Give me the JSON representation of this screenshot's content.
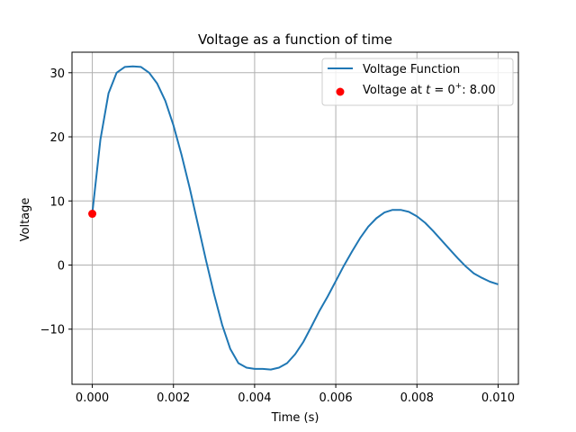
{
  "chart_data": {
    "type": "line",
    "title": "Voltage as a function of time",
    "xlabel": "Time (s)",
    "ylabel": "Voltage",
    "xlim": [
      -0.0005,
      0.0105
    ],
    "ylim": [
      -18.6,
      33.2
    ],
    "xticks": [
      0.0,
      0.002,
      0.004,
      0.006,
      0.008,
      0.01
    ],
    "xtick_labels": [
      "0.000",
      "0.002",
      "0.004",
      "0.006",
      "0.008",
      "0.010"
    ],
    "yticks": [
      -10,
      0,
      10,
      20,
      30
    ],
    "ytick_labels": [
      "−10",
      "0",
      "10",
      "20",
      "30"
    ],
    "grid": true,
    "legend_position": "top-right",
    "series": [
      {
        "name": "Voltage Function",
        "kind": "line",
        "color": "#1f77b4",
        "x": [
          0.0,
          0.0002,
          0.0004,
          0.0006,
          0.0008,
          0.001,
          0.0012,
          0.0014,
          0.0016,
          0.0018,
          0.002,
          0.0022,
          0.0024,
          0.0026,
          0.0028,
          0.003,
          0.0032,
          0.0034,
          0.0036,
          0.0038,
          0.004,
          0.0042,
          0.0044,
          0.0046,
          0.0048,
          0.005,
          0.0052,
          0.0054,
          0.0056,
          0.0058,
          0.006,
          0.0062,
          0.0064,
          0.0066,
          0.0068,
          0.007,
          0.0072,
          0.0074,
          0.0076,
          0.0078,
          0.008,
          0.0082,
          0.0084,
          0.0086,
          0.0088,
          0.009,
          0.0092,
          0.0094,
          0.0096,
          0.0098,
          0.01
        ],
        "y": [
          8.0,
          19.6,
          26.8,
          30.0,
          30.9,
          31.0,
          30.9,
          30.0,
          28.3,
          25.6,
          21.8,
          17.2,
          12.0,
          6.4,
          0.8,
          -4.5,
          -9.3,
          -13.1,
          -15.3,
          -16.0,
          -16.2,
          -16.2,
          -16.3,
          -16.0,
          -15.3,
          -13.9,
          -12.0,
          -9.6,
          -7.1,
          -4.9,
          -2.5,
          -0.1,
          2.1,
          4.2,
          6.0,
          7.3,
          8.2,
          8.6,
          8.6,
          8.3,
          7.6,
          6.6,
          5.3,
          3.9,
          2.5,
          1.1,
          -0.2,
          -1.3,
          -2.0,
          -2.6,
          -3.0
        ]
      },
      {
        "name": "Voltage at $t = 0^+$: 8.00",
        "kind": "point",
        "color": "#ff0000",
        "x": [
          0.0
        ],
        "y": [
          8.0
        ]
      }
    ]
  },
  "legend": {
    "items": [
      {
        "prefix": "Voltage Function",
        "var": "",
        "sup": "",
        "suffix": ""
      },
      {
        "prefix": "Voltage at ",
        "var": "t",
        "sup": "+",
        "suffix": ": 8.00"
      }
    ]
  }
}
